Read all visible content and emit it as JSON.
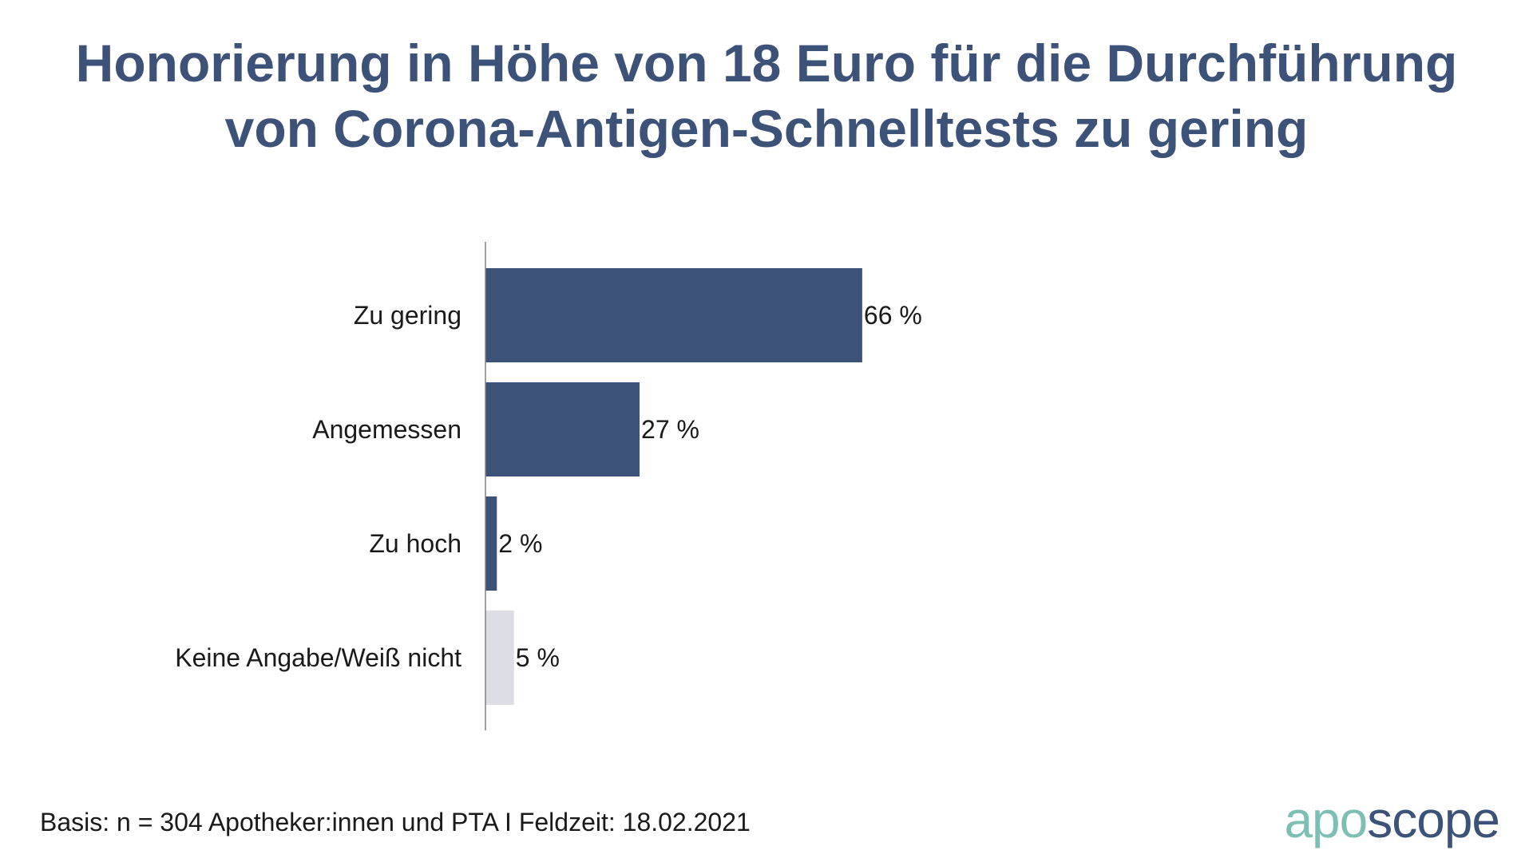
{
  "chart_data": {
    "type": "bar",
    "orientation": "horizontal",
    "title_lines": [
      "Honorierung in Höhe von 18 Euro für die Durchführung",
      "von Corona-Antigen-Schnelltests zu gering"
    ],
    "categories": [
      "Zu gering",
      "Angemessen",
      "Zu hoch",
      "Keine Angabe/Weiß nicht"
    ],
    "values": [
      66,
      27,
      2,
      5
    ],
    "value_labels": [
      "66 %",
      "27 %",
      "2 %",
      "5 %"
    ],
    "unit": "%",
    "xlim": [
      0,
      100
    ],
    "grid": false,
    "colors": [
      "#3d5278",
      "#3d5278",
      "#3d5278",
      "#dcdde5"
    ],
    "axis_color": "#808080"
  },
  "footer": {
    "basis": "Basis: n = 304 Apotheker:innen und PTA I Feldzeit: 18.02.2021"
  },
  "logo": {
    "part1": "apo",
    "part2": "scope",
    "color1": "#7ebfb5",
    "color2": "#3d5278"
  }
}
